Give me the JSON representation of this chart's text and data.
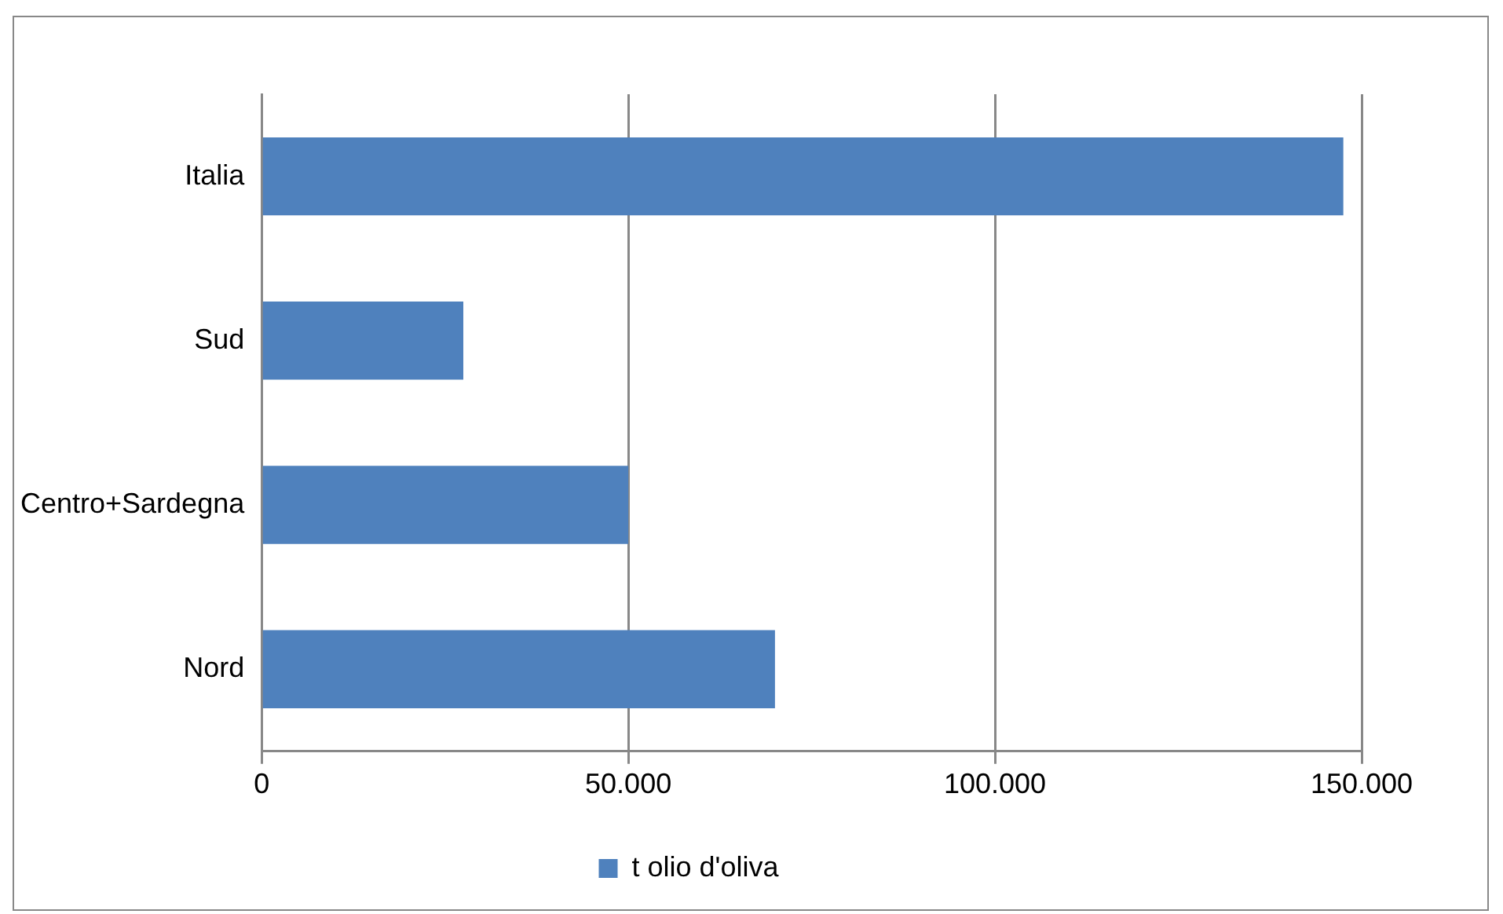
{
  "chart_data": {
    "type": "bar",
    "orientation": "horizontal",
    "categories": [
      "Italia",
      "Sud",
      "Centro+Sardegna",
      "Nord"
    ],
    "series": [
      {
        "name": "t olio d'oliva",
        "color": "#4f81bd",
        "values": [
          147500,
          27500,
          50000,
          70000
        ]
      }
    ],
    "xlim": [
      0,
      150000
    ],
    "xticks": [
      0,
      {
        "value": 50000,
        "label": "50.000"
      },
      {
        "value": 100000,
        "label": "100.000"
      },
      {
        "value": 150000,
        "label": "150.000"
      }
    ],
    "grid": "x",
    "legend": "bottom"
  }
}
